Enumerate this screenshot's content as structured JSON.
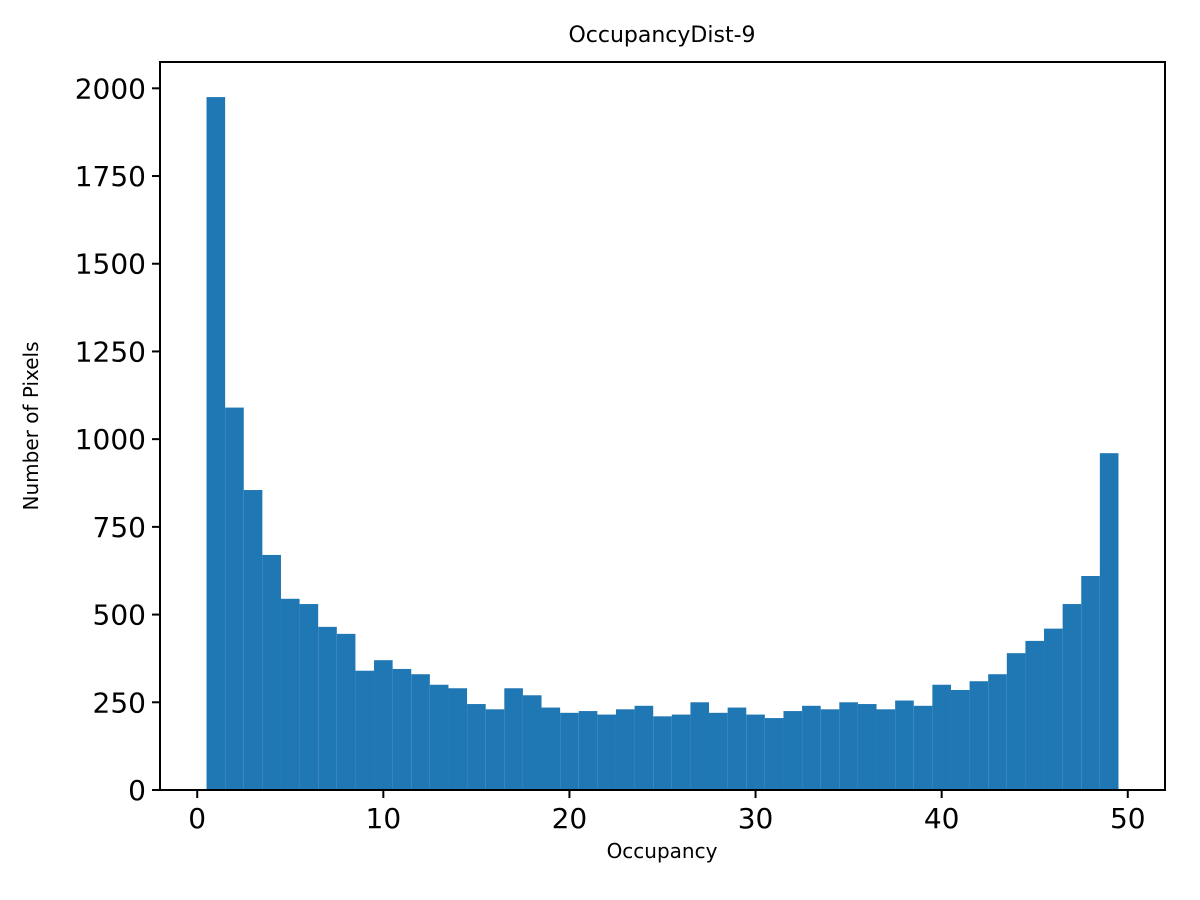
{
  "figure": {
    "background": "#ffffff"
  },
  "chart_data": {
    "type": "bar",
    "subtype": "histogram",
    "title": "OccupancyDist-9",
    "xlabel": "Occupancy",
    "ylabel": "Number of Pixels",
    "bar_color": "#1f77b4",
    "axis_color": "#000000",
    "grid": false,
    "legend": null,
    "bin_start": 0.5,
    "bin_width": 1,
    "xlim": [
      -2,
      52
    ],
    "ylim": [
      0,
      2075
    ],
    "xticks": [
      0,
      10,
      20,
      30,
      40,
      50
    ],
    "yticks": [
      0,
      250,
      500,
      750,
      1000,
      1250,
      1500,
      1750,
      2000
    ],
    "values": [
      1975,
      1090,
      855,
      670,
      545,
      530,
      465,
      445,
      340,
      370,
      345,
      330,
      300,
      290,
      245,
      230,
      290,
      270,
      235,
      220,
      225,
      215,
      230,
      240,
      210,
      215,
      250,
      220,
      235,
      215,
      205,
      225,
      240,
      230,
      250,
      245,
      230,
      255,
      240,
      300,
      285,
      310,
      330,
      390,
      425,
      460,
      530,
      610,
      960
    ]
  }
}
